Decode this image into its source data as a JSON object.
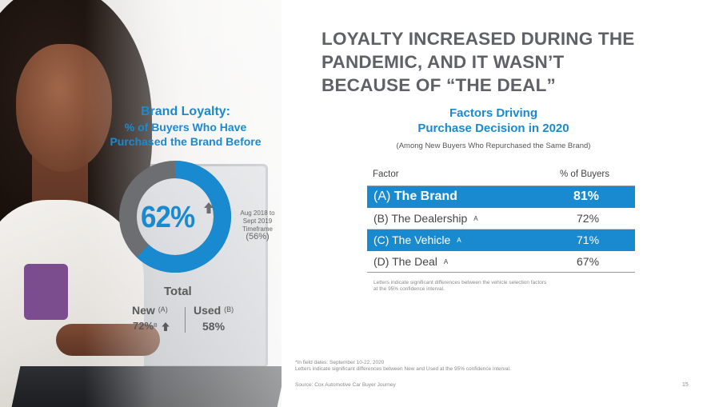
{
  "left_panel": {
    "title": "Brand Loyalty:",
    "subtitle_line1": "% of Buyers Who Have",
    "subtitle_line2": "Purchased the Brand Before",
    "donut": {
      "value_label": "62%",
      "value": 62,
      "fill_color": "#1a8ad0",
      "track_color": "#6d6e71"
    },
    "timeframe_line1": "Aug 2018 to",
    "timeframe_line2": "Sept 2019",
    "timeframe_line3": "Timeframe",
    "timeframe_value": "(56%)",
    "total_label": "Total",
    "new_label": "New",
    "new_marker": "(A)",
    "new_value": "72%",
    "new_value_marker": "B",
    "used_label": "Used",
    "used_marker": "(B)",
    "used_value": "58%",
    "arrow_icon": "up-arrow-icon"
  },
  "headline_line1": "LOYALTY INCREASED DURING THE",
  "headline_line2": "PANDEMIC, AND IT WASN’T",
  "headline_line3": "BECAUSE OF “THE DEAL”",
  "factors": {
    "title_line1": "Factors Driving",
    "title_line2": "Purchase Decision in 2020",
    "subtitle": "(Among New Buyers Who Repurchased the Same Brand)",
    "col_factor": "Factor",
    "col_pct": "% of Buyers",
    "rows": [
      {
        "prefix": "(A)",
        "label": "The Brand",
        "mark": "",
        "value": "81%"
      },
      {
        "prefix": "(B)",
        "label": "The Dealership",
        "mark": "A",
        "value": "72%"
      },
      {
        "prefix": "(C)",
        "label": "The Vehicle",
        "mark": "A",
        "value": "71%"
      },
      {
        "prefix": "(D)",
        "label": "The Deal",
        "mark": "A",
        "value": "67%"
      }
    ],
    "note_line1": "Letters indicate significant differences between the vehicle selection factors",
    "note_line2": "at the 95% confidence interval."
  },
  "footnote_line1": "*In field dates: September 10-22, 2020",
  "footnote_line2": "Letters indicate significant differences between New and Used at the 95% confidence interval.",
  "source": "Source:  Cox Automotive Car Buyer Journey",
  "page_number": "15",
  "accent_color": "#1a8ad0"
}
